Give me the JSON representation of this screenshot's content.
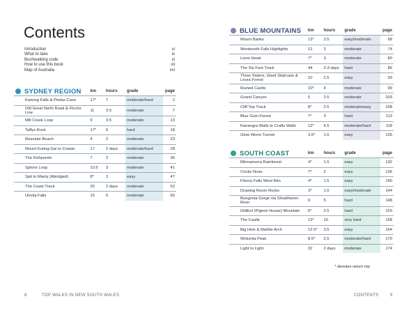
{
  "title": "Contents",
  "front_matter": [
    {
      "label": "Introduction",
      "page": "vi"
    },
    {
      "label": "What to take",
      "page": "ix"
    },
    {
      "label": "Bushwalking code",
      "page": "xi"
    },
    {
      "label": "How to use this book",
      "page": "xii"
    },
    {
      "label": "Map of Australia",
      "page": "xvi"
    }
  ],
  "sections": [
    {
      "name": "SYDNEY REGION",
      "columns": [
        "km",
        "hours",
        "grade",
        "page"
      ],
      "rows": [
        [
          "Kariong Falls & Pindar Cave",
          "17*",
          "7",
          "moderate/hard",
          "2"
        ],
        [
          "Old Great North Road & Finchs Line",
          "11",
          "3.5",
          "moderate",
          "7"
        ],
        [
          "Mill Creek Loop",
          "9",
          "3.5",
          "moderate",
          "13"
        ],
        [
          "Taffys Rock",
          "17*",
          "6",
          "hard",
          "18"
        ],
        [
          "Resolute Beach",
          "4",
          "2",
          "moderate",
          "23"
        ],
        [
          "Mount Kuring-Gai to Cowan",
          "17",
          "2 days",
          "moderate/hard",
          "28"
        ],
        [
          "The Fishponds",
          "7",
          "3",
          "moderate",
          "36"
        ],
        [
          "Sphinx Loop",
          "10.5",
          "3",
          "moderate",
          "41"
        ],
        [
          "Spit to Manly (Abridged)",
          "8*",
          "3",
          "easy",
          "47"
        ],
        [
          "The Coast Track",
          "26",
          "2 days",
          "moderate",
          "52"
        ],
        [
          "Uloola Falls",
          "15",
          "6",
          "moderate",
          "60"
        ]
      ]
    },
    {
      "name": "BLUE MOUNTAINS",
      "columns": [
        "km",
        "hours",
        "grade",
        "page"
      ],
      "rows": [
        [
          "Mount Banks",
          "13*",
          "3.5",
          "easy/moderate",
          "68"
        ],
        [
          "Wentworth Falls Highlights",
          "12",
          "3",
          "moderate",
          "74"
        ],
        [
          "Lions Head",
          "7*",
          "3",
          "moderate",
          "80"
        ],
        [
          "The Six Foot Track",
          "44",
          "2-3 days",
          "hard",
          "85"
        ],
        [
          "Three Sisters, Giant Staircase & Leura Forest",
          "10",
          "2.5",
          "easy",
          "93"
        ],
        [
          "Ruined Castle",
          "10*",
          "4",
          "moderate",
          "99"
        ],
        [
          "Grand Canyon",
          "5",
          "2.5",
          "moderate",
          "103"
        ],
        [
          "Cliff Top Track",
          "8*",
          "2.5",
          "moderate/easy",
          "108"
        ],
        [
          "Blue Gum Forest",
          "7*",
          "3",
          "hard",
          "113"
        ],
        [
          "Kanangra Walls to Crafts Walls",
          "12*",
          "4.5",
          "moderate/hard",
          "118"
        ],
        [
          "Glow Worm Tunnel",
          "3.5*",
          "1.5",
          "easy",
          "126"
        ]
      ]
    },
    {
      "name": "SOUTH COAST",
      "columns": [
        "km",
        "hours",
        "grade",
        "page"
      ],
      "rows": [
        [
          "Minnamurra Rainforest",
          "4*",
          "1.5",
          "easy",
          "132"
        ],
        [
          "Cooks Nose",
          "7*",
          "2",
          "easy",
          "136"
        ],
        [
          "Fitzroy Falls West Rim",
          "4*",
          "1.5",
          "easy",
          "140"
        ],
        [
          "Drawing Room Rocks",
          "3*",
          "1.5",
          "easy/moderate",
          "144"
        ],
        [
          "Bungonia Gorge via Shoalhaven River",
          "9",
          "5",
          "hard",
          "148"
        ],
        [
          "Didthul (Pigeon House) Mountain",
          "6*",
          "2.5",
          "hard",
          "153"
        ],
        [
          "The Castle",
          "13*",
          "10",
          "very hard",
          "158"
        ],
        [
          "Big Hole & Marble Arch",
          "12.5*",
          "3.5",
          "easy",
          "164"
        ],
        [
          "Wolumla Peak",
          "8.5*",
          "2.5",
          "moderate/hard",
          "170"
        ],
        [
          "Light to Light",
          "32",
          "2 days",
          "moderate",
          "174"
        ]
      ]
    }
  ],
  "note": "* denotes return trip",
  "footer": {
    "left_page": "8",
    "left_title": "TOP WALKS IN NEW SOUTH WALES",
    "right_title": "CONTENTS",
    "right_page": "9"
  }
}
